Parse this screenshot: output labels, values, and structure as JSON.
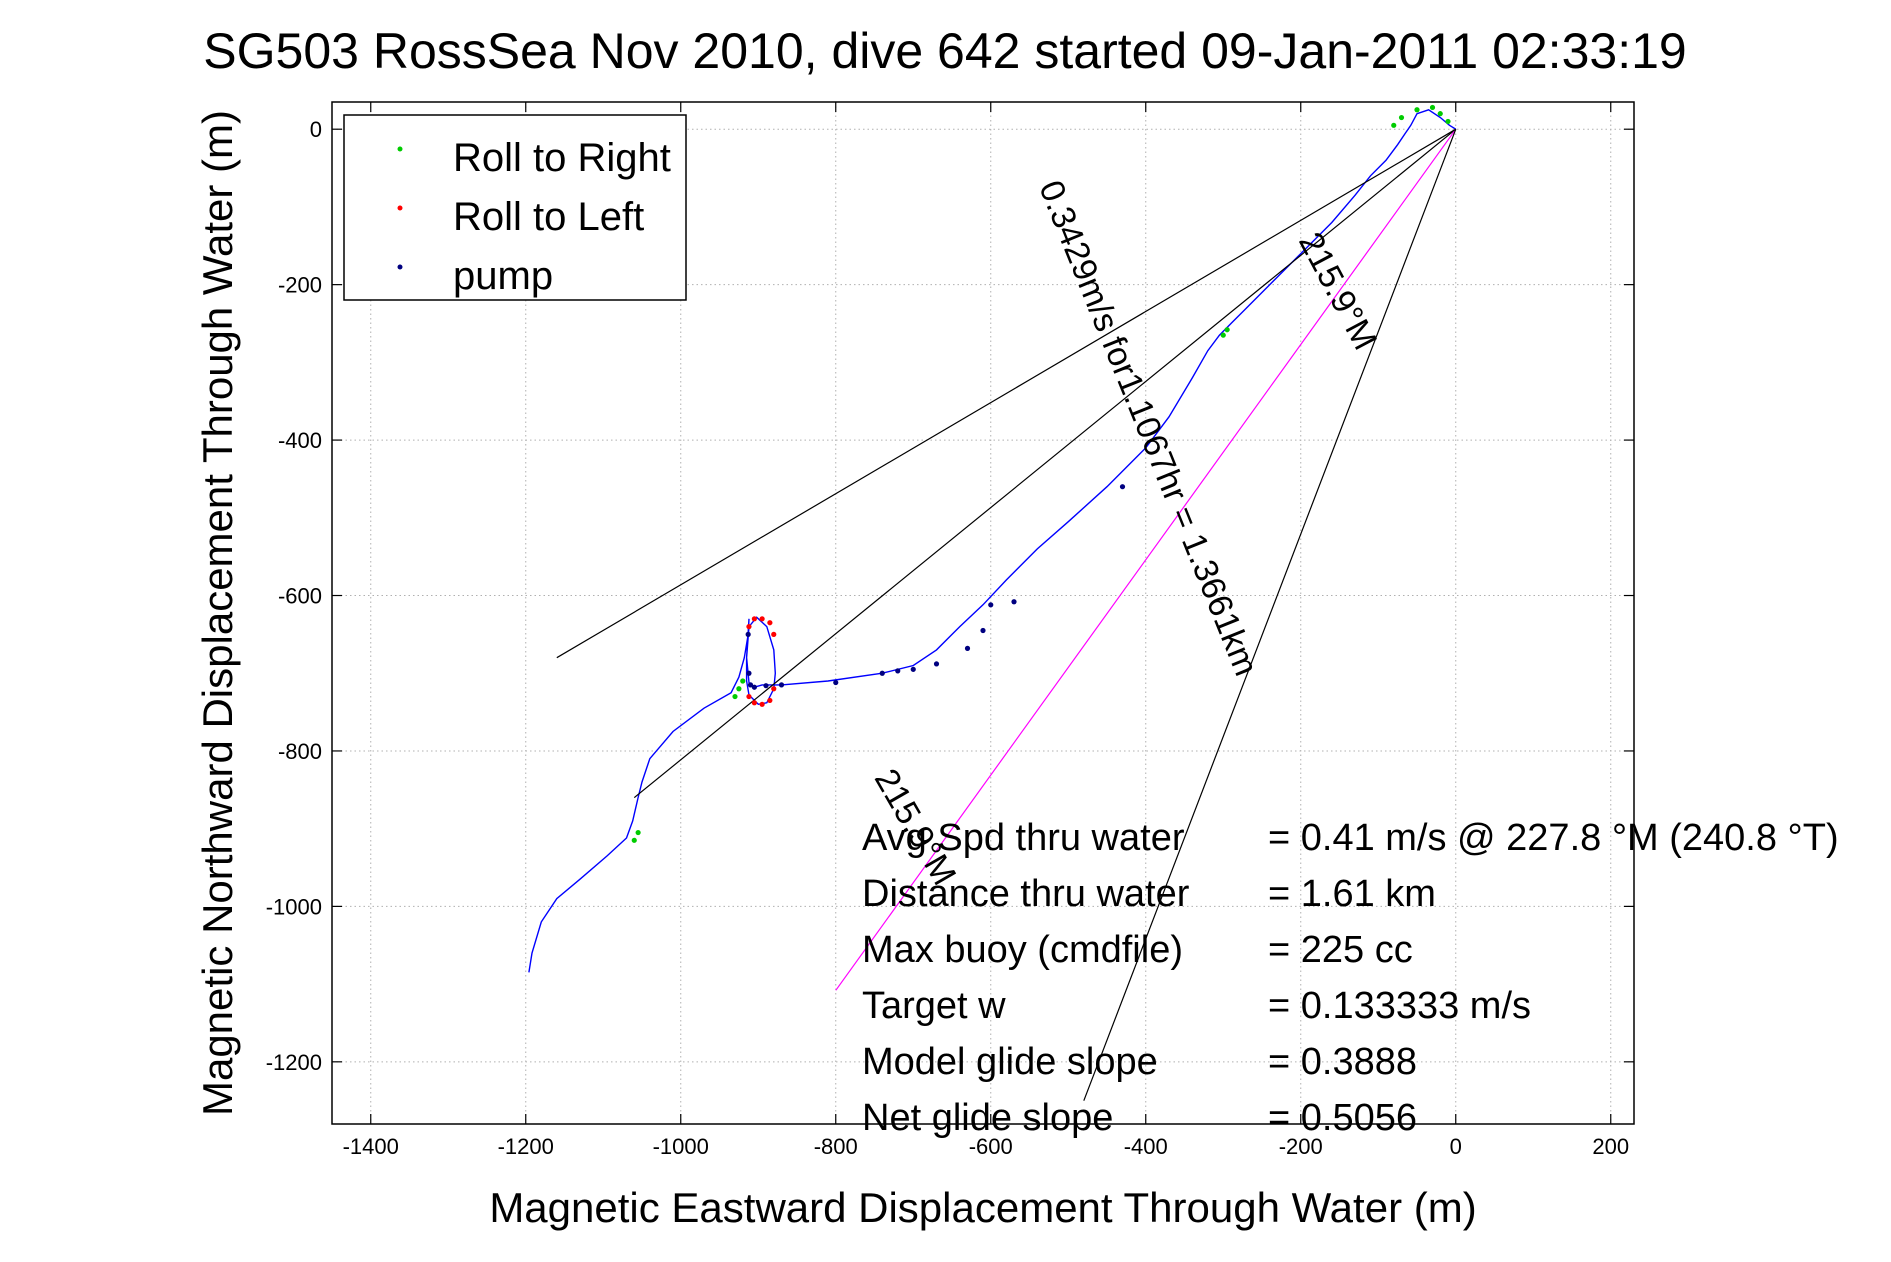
{
  "chart_data": {
    "type": "line",
    "title": "SG503 RossSea Nov 2010, dive 642 started 09-Jan-2011 02:33:19",
    "xlabel": "Magnetic Eastward Displacement Through Water (m)",
    "ylabel": "Magnetic Northward Displacement Through Water (m)",
    "xlim": [
      -1450,
      230
    ],
    "ylim": [
      -1280,
      35
    ],
    "xticks": [
      -1400,
      -1200,
      -1000,
      -800,
      -600,
      -400,
      -200,
      0,
      200
    ],
    "yticks": [
      0,
      -200,
      -400,
      -600,
      -800,
      -1000,
      -1200
    ],
    "xtick_labels": [
      "-1400",
      "-1200",
      "-1000",
      "-800",
      "-600",
      "-400",
      "-200",
      "0",
      "200"
    ],
    "ytick_labels": [
      "0",
      "-200",
      "-400",
      "-600",
      "-800",
      "-1000",
      "-1200"
    ],
    "grid": true,
    "legend": {
      "placement": "top-left",
      "entries": [
        {
          "label": "Roll to Right",
          "color": "#00cc00"
        },
        {
          "label": "Roll to Left",
          "color": "#ff0000"
        },
        {
          "label": "pump",
          "color": "#000080"
        }
      ]
    },
    "series": [
      {
        "name": "track",
        "color": "#0000ff",
        "x": [
          -1196,
          -1192,
          -1180,
          -1160,
          -1130,
          -1095,
          -1070,
          -1062,
          -1055,
          -1050,
          -1040,
          -1010,
          -970,
          -935,
          -925,
          -918,
          -913,
          -912,
          -915,
          -915,
          -912,
          -900,
          -889,
          -880,
          -878,
          -880,
          -889,
          -902,
          -912,
          -915,
          -912,
          -905,
          -895,
          -885,
          -870,
          -810,
          -740,
          -700,
          -670,
          -640,
          -610,
          -580,
          -540,
          -500,
          -450,
          -400,
          -370,
          -340,
          -320,
          -305,
          -300,
          -290,
          -270,
          -240,
          -200,
          -160,
          -130,
          -110,
          -90,
          -75,
          -65,
          -58,
          -50,
          -35,
          -20,
          -8,
          0
        ],
        "y": [
          -1085,
          -1060,
          -1020,
          -990,
          -965,
          -935,
          -912,
          -890,
          -860,
          -840,
          -810,
          -775,
          -745,
          -725,
          -705,
          -680,
          -650,
          -630,
          -680,
          -710,
          -728,
          -740,
          -738,
          -720,
          -700,
          -670,
          -640,
          -628,
          -640,
          -680,
          -712,
          -718,
          -715,
          -715,
          -715,
          -710,
          -700,
          -690,
          -670,
          -640,
          -612,
          -580,
          -540,
          -505,
          -460,
          -410,
          -370,
          -320,
          -285,
          -265,
          -260,
          -250,
          -230,
          -200,
          -160,
          -120,
          -85,
          -60,
          -40,
          -20,
          -5,
          5,
          20,
          25,
          15,
          5,
          0
        ]
      },
      {
        "name": "average",
        "color": "#000000",
        "x": [
          -1060,
          0
        ],
        "y": [
          -860,
          0
        ]
      },
      {
        "name": "heading-215.9",
        "color": "#ff00ff",
        "x": [
          -800,
          0
        ],
        "y": [
          -1108,
          0
        ]
      },
      {
        "name": "upper-bound",
        "color": "#000000",
        "x": [
          -1160,
          0
        ],
        "y": [
          -680,
          0
        ]
      },
      {
        "name": "lower-bound",
        "color": "#000000",
        "x": [
          -480,
          0
        ],
        "y": [
          -1250,
          0
        ]
      }
    ],
    "markers": [
      {
        "series": "Roll to Right",
        "x": [
          -1060,
          -1055,
          -930,
          -925,
          -920,
          -300,
          -295,
          -80,
          -70,
          -50,
          -30,
          -20,
          -10
        ],
        "y": [
          -915,
          -905,
          -730,
          -720,
          -710,
          -265,
          -258,
          5,
          15,
          25,
          28,
          20,
          10
        ]
      },
      {
        "series": "Roll to Left",
        "x": [
          -912,
          -905,
          -895,
          -885,
          -880,
          -912,
          -905,
          -895,
          -885,
          -880
        ],
        "y": [
          -640,
          -630,
          -630,
          -635,
          -650,
          -730,
          -738,
          -740,
          -735,
          -720
        ]
      },
      {
        "series": "pump",
        "x": [
          -913,
          -912,
          -910,
          -905,
          -890,
          -870,
          -800,
          -740,
          -720,
          -700,
          -670,
          -630,
          -610,
          -600,
          -570,
          -430
        ],
        "y": [
          -650,
          -700,
          -715,
          -718,
          -716,
          -715,
          -712,
          -700,
          -697,
          -695,
          -688,
          -668,
          -645,
          -612,
          -608,
          -460
        ]
      }
    ],
    "annotations": {
      "rotated": [
        {
          "text": "0.3429m/s for1.1067hr = 1.3661km",
          "x": -410,
          "y": -390,
          "angle": 68
        },
        {
          "text": "215.9°M",
          "x": -165,
          "y": -215,
          "angle": 62
        },
        {
          "text": "215.9°M",
          "x": -710,
          "y": -905,
          "angle": 60
        }
      ],
      "stats": [
        {
          "label": "Avg Spd thru water",
          "value": "=  0.41 m/s @ 227.8 °M (240.8 °T)"
        },
        {
          "label": "Distance thru water",
          "value": "=  1.61 km"
        },
        {
          "label": "Max buoy (cmdfile)",
          "value": "= 225 cc"
        },
        {
          "label": "Target w",
          "value": "= 0.133333 m/s"
        },
        {
          "label": "Model glide slope",
          "value": "= 0.3888"
        },
        {
          "label": "Net glide slope",
          "value": "= 0.5056"
        }
      ]
    }
  }
}
